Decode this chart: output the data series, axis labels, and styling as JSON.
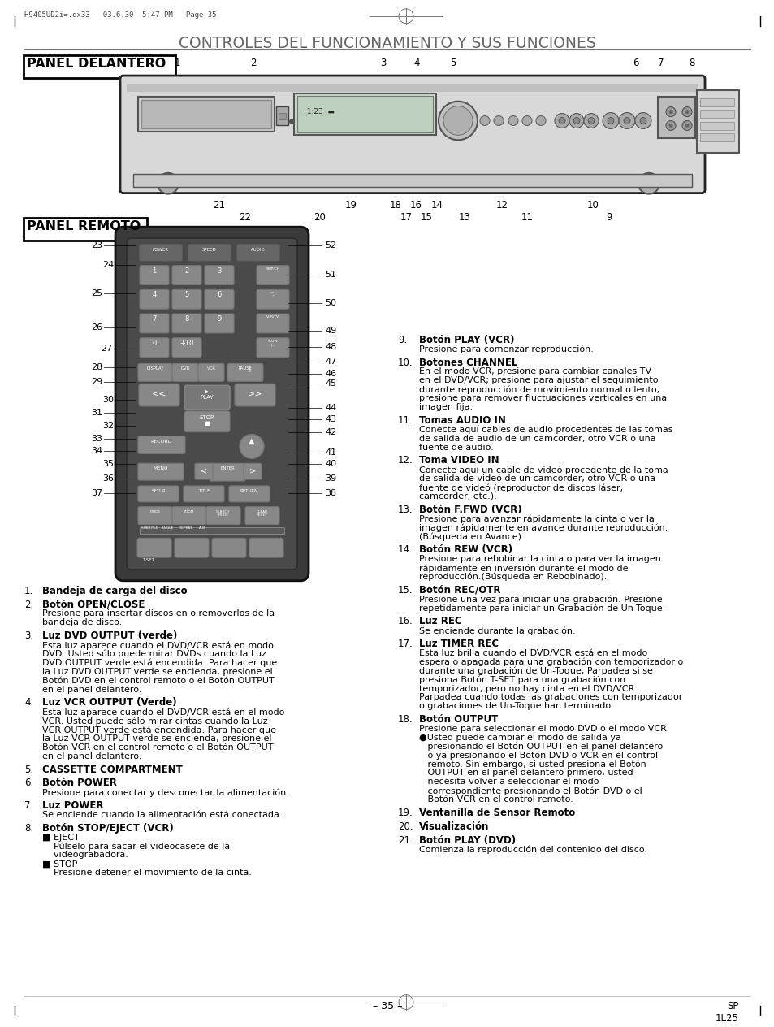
{
  "title": "CONTROLES DEL FUNCIONAMIENTO Y SUS FUNCIONES",
  "panel_delantero": "PANEL DELANTERO",
  "panel_remoto": "PANEL REMOTO",
  "header_text": "H9405UD2i=.qx33   03.6.30  5:47 PM   Page 35",
  "footer_left": "– 35 –",
  "footer_right": "SP\n1L25",
  "bg_color": "#ffffff",
  "text_color": "#000000",
  "items_left": [
    {
      "num": "1.",
      "bold": "Bandeja de carga del disco",
      "text": ""
    },
    {
      "num": "2.",
      "bold": "Botón OPEN/CLOSE",
      "text": "Presione para insertar discos en o removerlos de la\nbandeja de disco."
    },
    {
      "num": "3.",
      "bold": "Luz DVD OUTPUT (verde)",
      "text": "Esta luz aparece cuando el DVD/VCR está en modo\nDVD. Usted sólo puede mirar DVDs cuando la Luz\nDVD OUTPUT verde está encendida. Para hacer que\nla Luz DVD OUTPUT verde se encienda, presione el\nBotón DVD en el control remoto o el Botón OUTPUT\nen el panel delantero."
    },
    {
      "num": "4.",
      "bold": "Luz VCR OUTPUT (Verde)",
      "text": "Esta luz aparece cuando el DVD/VCR está en el modo\nVCR. Usted puede sólo mirar cintas cuando la Luz\nVCR OUTPUT verde está encendida. Para hacer que\nla Luz VCR OUTPUT verde se encienda, presione el\nBotón VCR en el control remoto o el Botón OUTPUT\nen el panel delantero."
    },
    {
      "num": "5.",
      "bold": "CASSETTE COMPARTMENT",
      "text": ""
    },
    {
      "num": "6.",
      "bold": "Botón POWER",
      "text": "Presione para conectar y desconectar la alimentación."
    },
    {
      "num": "7.",
      "bold": "Luz POWER",
      "text": "Se enciende cuando la alimentación está conectada."
    },
    {
      "num": "8.",
      "bold": "Botón STOP/EJECT (VCR)",
      "text": "■ EJECT\n    Púlselo para sacar el videocasete de la\n    videograbadora.\n■ STOP\n    Presione detener el movimiento de la cinta."
    }
  ],
  "items_right": [
    {
      "num": "9.",
      "bold": "Botón PLAY (VCR)",
      "text": "Presione para comenzar reproducción."
    },
    {
      "num": "10.",
      "bold": "Botones CHANNEL",
      "text": "En el modo VCR, presione para cambiar canales TV\nen el DVD/VCR; presione para ajustar el seguimiento\ndurante reproducción de movimiento normal o lento;\npresione para remover fluctuaciones verticales en una\nimagen fija."
    },
    {
      "num": "11.",
      "bold": "Tomas AUDIO IN",
      "text": "Conecte aquí cables de audio procedentes de las tomas\nde salida de audio de un camcorder, otro VCR o una\nfuente de audio."
    },
    {
      "num": "12.",
      "bold": "Toma VIDEO IN",
      "text": "Conecte aquí un cable de videó procedente de la toma\nde salida de videó de un camcorder, otro VCR o una\nfuente de videó (reproductor de discos láser,\ncamcorder, etc.)."
    },
    {
      "num": "13.",
      "bold": "Botón F.FWD (VCR)",
      "text": "Presione para avanzar rápidamente la cinta o ver la\nimagen rápidamente en avance durante reproducción.\n(Búsqueda en Avance)."
    },
    {
      "num": "14.",
      "bold": "Botón REW (VCR)",
      "text": "Presione para rebobinar la cinta o para ver la imagen\nrápidamente en inversión durante el modo de\nreproducción.(Búsqueda en Rebobinado)."
    },
    {
      "num": "15.",
      "bold": "Botón REC/OTR",
      "text": "Presione una vez para iniciar una grabación. Presione\nrepetidamente para iniciar un Grabación de Un-Toque."
    },
    {
      "num": "16.",
      "bold": "Luz REC",
      "text": "Se enciende durante la grabación."
    },
    {
      "num": "17.",
      "bold": "Luz TIMER REC",
      "text": "Esta luz brilla cuando el DVD/VCR está en el modo\nespera o apagada para una grabación con temporizador o\ndurante una grabación de Un-Toque, Parpadea si se\npresiona Botón T-SET para una grabación con\ntemporizador, pero no hay cinta en el DVD/VCR.\nParpadea cuando todas las grabaciones con temporizador\no grabaciones de Un-Toque han terminado."
    },
    {
      "num": "18.",
      "bold": "Botón OUTPUT",
      "text": "Presione para seleccionar el modo DVD o el modo VCR.\n●Usted puede cambiar el modo de salida ya\n   presionando el Botón OUTPUT en el panel delantero\n   o ya presionando el Botón DVD o VCR en el control\n   remoto. Sin embargo, si usted presiona el Botón\n   OUTPUT en el panel delantero primero, usted\n   necesita volver a seleccionar el modo\n   correspondiente presionando el Botón DVD o el\n   Botón VCR en el control remoto."
    },
    {
      "num": "19.",
      "bold": "Ventanilla de Sensor Remoto",
      "text": ""
    },
    {
      "num": "20.",
      "bold": "Visualización",
      "text": ""
    },
    {
      "num": "21.",
      "bold": "Botón PLAY (DVD)",
      "text": "Comienza la reproducción del contenido del disco."
    }
  ]
}
